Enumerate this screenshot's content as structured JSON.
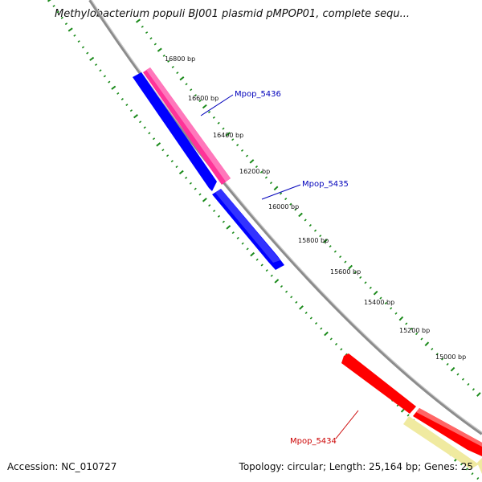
{
  "title": "Methylobacterium populi BJ001 plasmid pMPOP01, complete sequ...",
  "accession": "Accession: NC_010727",
  "summary": "Topology: circular; Length: 25,164 bp; Genes: 25",
  "colors": {
    "backbone": "#8c8c8c",
    "ticks": "#1a8a1a",
    "gene_blue": "#0000ff",
    "gene_pink": "#ff3399",
    "gene_red": "#ff0000",
    "gene_yellow": "#f0eaa0",
    "label_blue": "#0000bb",
    "label_red": "#cc0000"
  },
  "scale_labels": [
    "16800 bp",
    "16600 bp",
    "16400 bp",
    "16200 bp",
    "16000 bp",
    "15800 bp",
    "15600 bp",
    "15400 bp",
    "15200 bp",
    "15000 bp"
  ],
  "gene_labels": [
    {
      "text": "Mpop_5436",
      "color": "#0000bb"
    },
    {
      "text": "Mpop_5435",
      "color": "#0000bb"
    },
    {
      "text": "Mpop_5434",
      "color": "#cc0000"
    }
  ]
}
